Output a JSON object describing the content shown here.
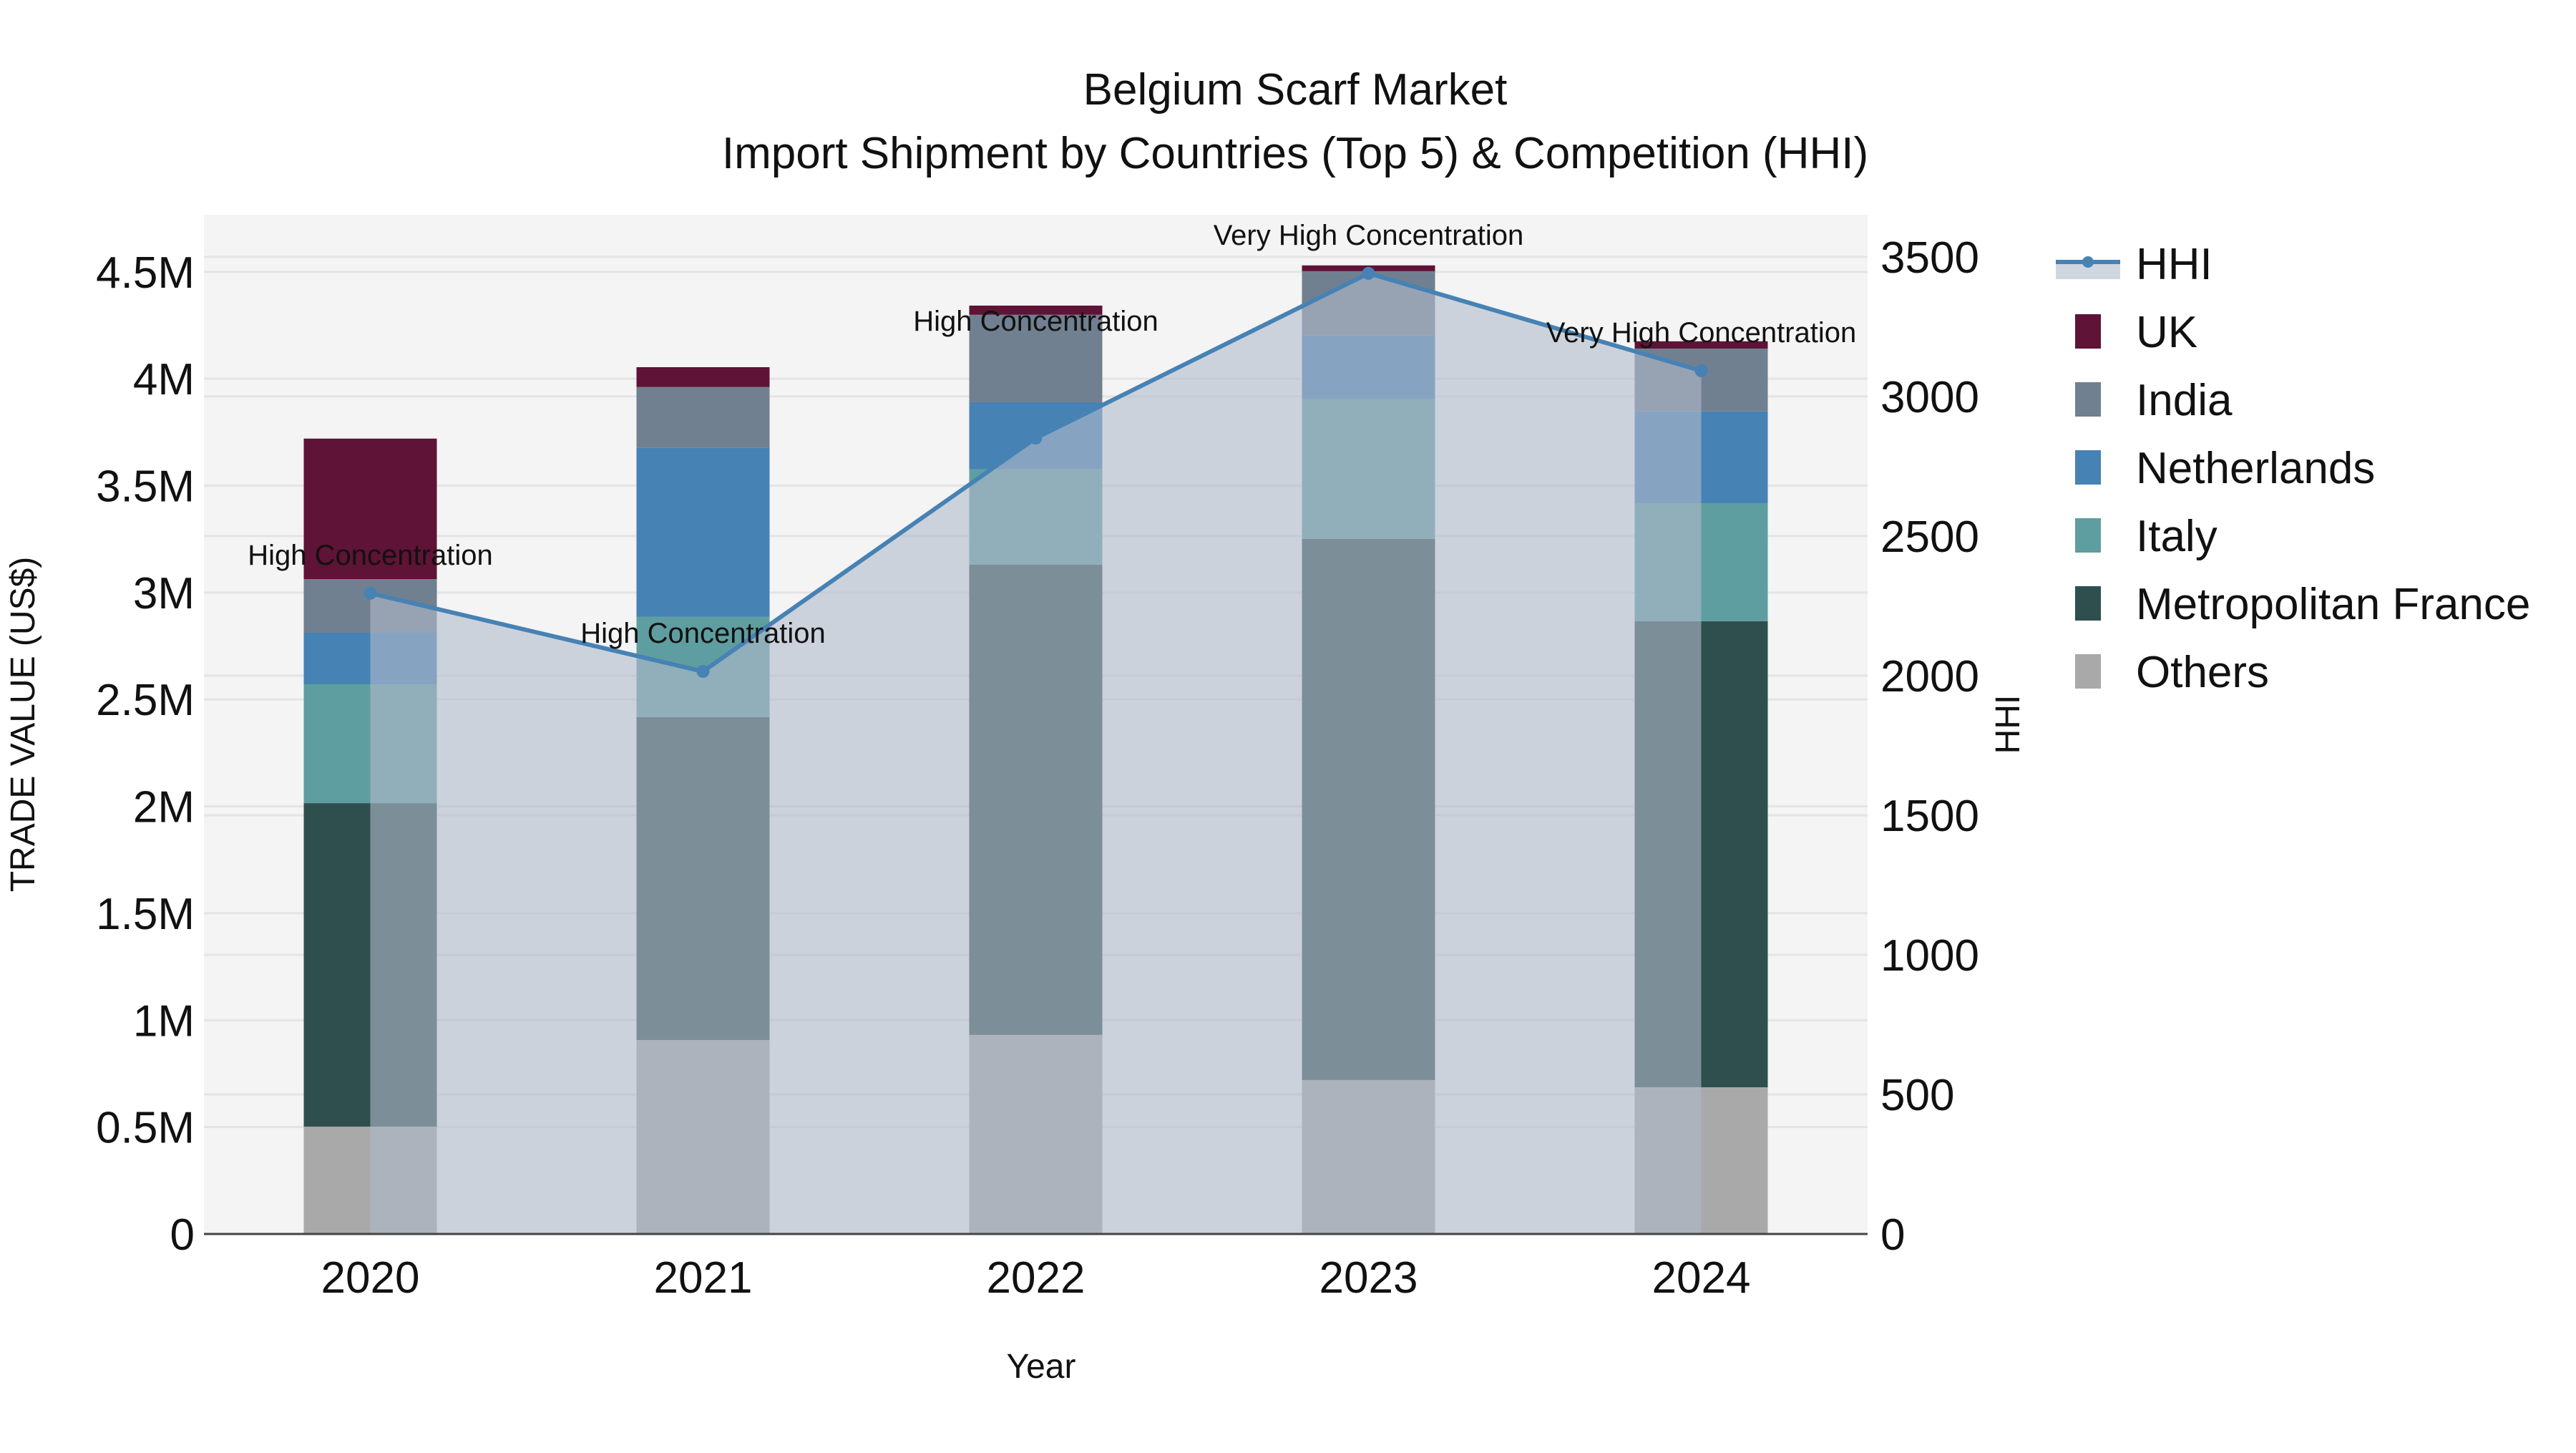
{
  "title": {
    "line1": "Belgium Scarf Market",
    "line2": "Import Shipment by Countries (Top 5) & Competition (HHI)"
  },
  "axes": {
    "x_title": "Year",
    "y_left_title": "TRADE VALUE (US$)",
    "y_right_title": "HHI",
    "y_left_ticks": [
      "0",
      "0.5M",
      "1M",
      "1.5M",
      "2M",
      "2.5M",
      "3M",
      "3.5M",
      "4M",
      "4.5M"
    ],
    "y_right_ticks": [
      "0",
      "500",
      "1000",
      "1500",
      "2000",
      "2500",
      "3000",
      "3500"
    ]
  },
  "legend": [
    {
      "name": "HHI",
      "type": "line",
      "color": "#4682b4"
    },
    {
      "name": "UK",
      "type": "bar",
      "color": "#5f1336"
    },
    {
      "name": "India",
      "type": "bar",
      "color": "#708090"
    },
    {
      "name": "Netherlands",
      "type": "bar",
      "color": "#4682b4"
    },
    {
      "name": "Italy",
      "type": "bar",
      "color": "#5f9ea0"
    },
    {
      "name": "Metropolitan France",
      "type": "bar",
      "color": "#2f4f4f"
    },
    {
      "name": "Others",
      "type": "bar",
      "color": "#a9a9a9"
    }
  ],
  "colors": {
    "plot_bg": "#f4f4f4",
    "grid": "#e4e4e4",
    "hhi_line": "#4682b4",
    "hhi_fill": "rgba(176,186,204,0.6)"
  },
  "chart_data": {
    "type": "bar",
    "title": "Belgium Scarf Market - Import Shipment by Countries (Top 5) & Competition (HHI)",
    "xlabel": "Year",
    "ylabel": "TRADE VALUE (US$)",
    "y2label": "HHI",
    "categories": [
      "2020",
      "2021",
      "2022",
      "2023",
      "2024"
    ],
    "stack_order_bottom_to_top": [
      "Others",
      "Metropolitan France",
      "Italy",
      "Netherlands",
      "India",
      "UK"
    ],
    "series": [
      {
        "name": "Others",
        "color": "#a9a9a9",
        "values": [
          502000,
          907000,
          931000,
          720000,
          686000
        ]
      },
      {
        "name": "Metropolitan France",
        "color": "#2f4f4f",
        "values": [
          1513000,
          1510000,
          2199000,
          2531000,
          2180000
        ]
      },
      {
        "name": "Italy",
        "color": "#5f9ea0",
        "values": [
          556000,
          469000,
          446000,
          653000,
          552000
        ]
      },
      {
        "name": "Netherlands",
        "color": "#4682b4",
        "values": [
          241000,
          790000,
          314000,
          298000,
          429000
        ]
      },
      {
        "name": "India",
        "color": "#708090",
        "values": [
          251000,
          285000,
          409000,
          301000,
          294000
        ]
      },
      {
        "name": "UK",
        "color": "#5f1336",
        "values": [
          657000,
          93000,
          43000,
          27000,
          34000
        ]
      }
    ],
    "totals": [
      3720000,
      4054000,
      4342000,
      4530000,
      4175000
    ],
    "hhi": {
      "name": "HHI",
      "axis": "right",
      "color": "#4682b4",
      "fill": "tozeroy",
      "values": [
        2295,
        2015,
        2851,
        3441,
        3092
      ],
      "annotations": [
        "High Concentration",
        "High Concentration",
        "High Concentration",
        "Very High Concentration",
        "Very High Concentration"
      ]
    },
    "ylim": [
      0,
      4767000
    ],
    "y2lim": [
      0,
      3651
    ],
    "grid": true,
    "legend_position": "right"
  }
}
